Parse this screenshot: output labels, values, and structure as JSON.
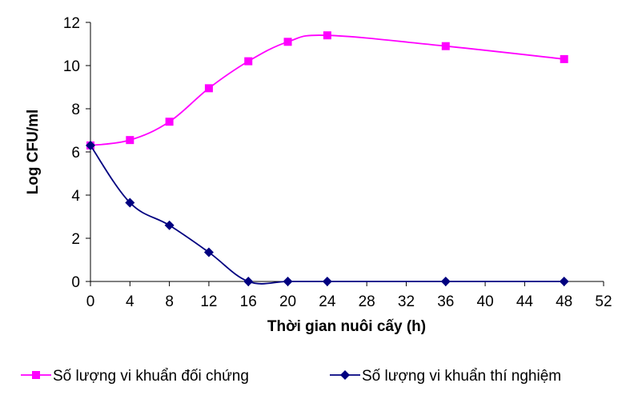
{
  "chart_data": {
    "type": "line",
    "title": "",
    "xlabel": "Thời gian nuôi cấy (h)",
    "ylabel": "Log CFU/ml",
    "xlim": [
      0,
      52
    ],
    "ylim": [
      0,
      12
    ],
    "xticks": [
      0,
      4,
      8,
      12,
      16,
      20,
      24,
      28,
      32,
      36,
      40,
      44,
      48,
      52
    ],
    "yticks": [
      0,
      2,
      4,
      6,
      8,
      10,
      12
    ],
    "grid": false,
    "legend_position": "bottom",
    "series": [
      {
        "name": "Số lượng vi khuẩn đối chứng",
        "color": "#ff00ff",
        "marker": "square",
        "x": [
          0,
          4,
          8,
          12,
          16,
          20,
          24,
          36,
          48
        ],
        "y": [
          6.3,
          6.55,
          7.4,
          8.95,
          10.2,
          11.1,
          11.4,
          10.9,
          10.3
        ]
      },
      {
        "name": "Số lượng vi khuẩn thí nghiệm",
        "color": "#000080",
        "marker": "diamond",
        "x": [
          0,
          4,
          8,
          12,
          16,
          20,
          24,
          36,
          48
        ],
        "y": [
          6.3,
          3.65,
          2.6,
          1.35,
          0,
          0,
          0,
          0,
          0
        ]
      }
    ]
  }
}
